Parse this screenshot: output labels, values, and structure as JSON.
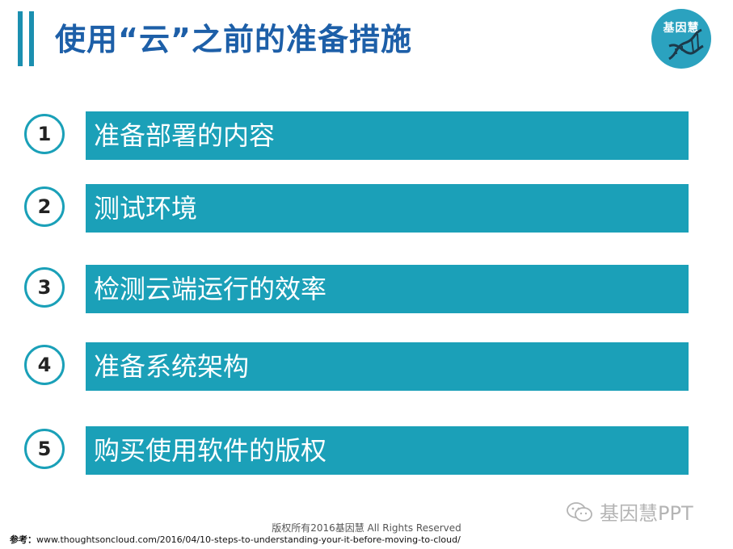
{
  "header": {
    "title": "使用“云”之前的准备措施",
    "logo_text": "基因慧"
  },
  "steps": [
    {
      "number": "1",
      "label": "准备部署的内容"
    },
    {
      "number": "2",
      "label": "测试环境"
    },
    {
      "number": "3",
      "label": "检测云端运行的效率"
    },
    {
      "number": "4",
      "label": "准备系统架构"
    },
    {
      "number": "5",
      "label": "购买使用软件的版权"
    }
  ],
  "footer": {
    "copyright": "版权所有2016基因慧 All Rights Reserved",
    "reference_label": "参考：",
    "reference_url": "www.thoughtsoncloud.com/2016/04/10-steps-to-understanding-your-it-before-moving-to-cloud/",
    "watermark": "基因慧PPT"
  },
  "colors": {
    "accent": "#1ba0b8",
    "title": "#1d5fa8",
    "logo_bg": "#2ba2bf"
  },
  "icons": [
    "dna-helix-icon",
    "wechat-icon"
  ]
}
